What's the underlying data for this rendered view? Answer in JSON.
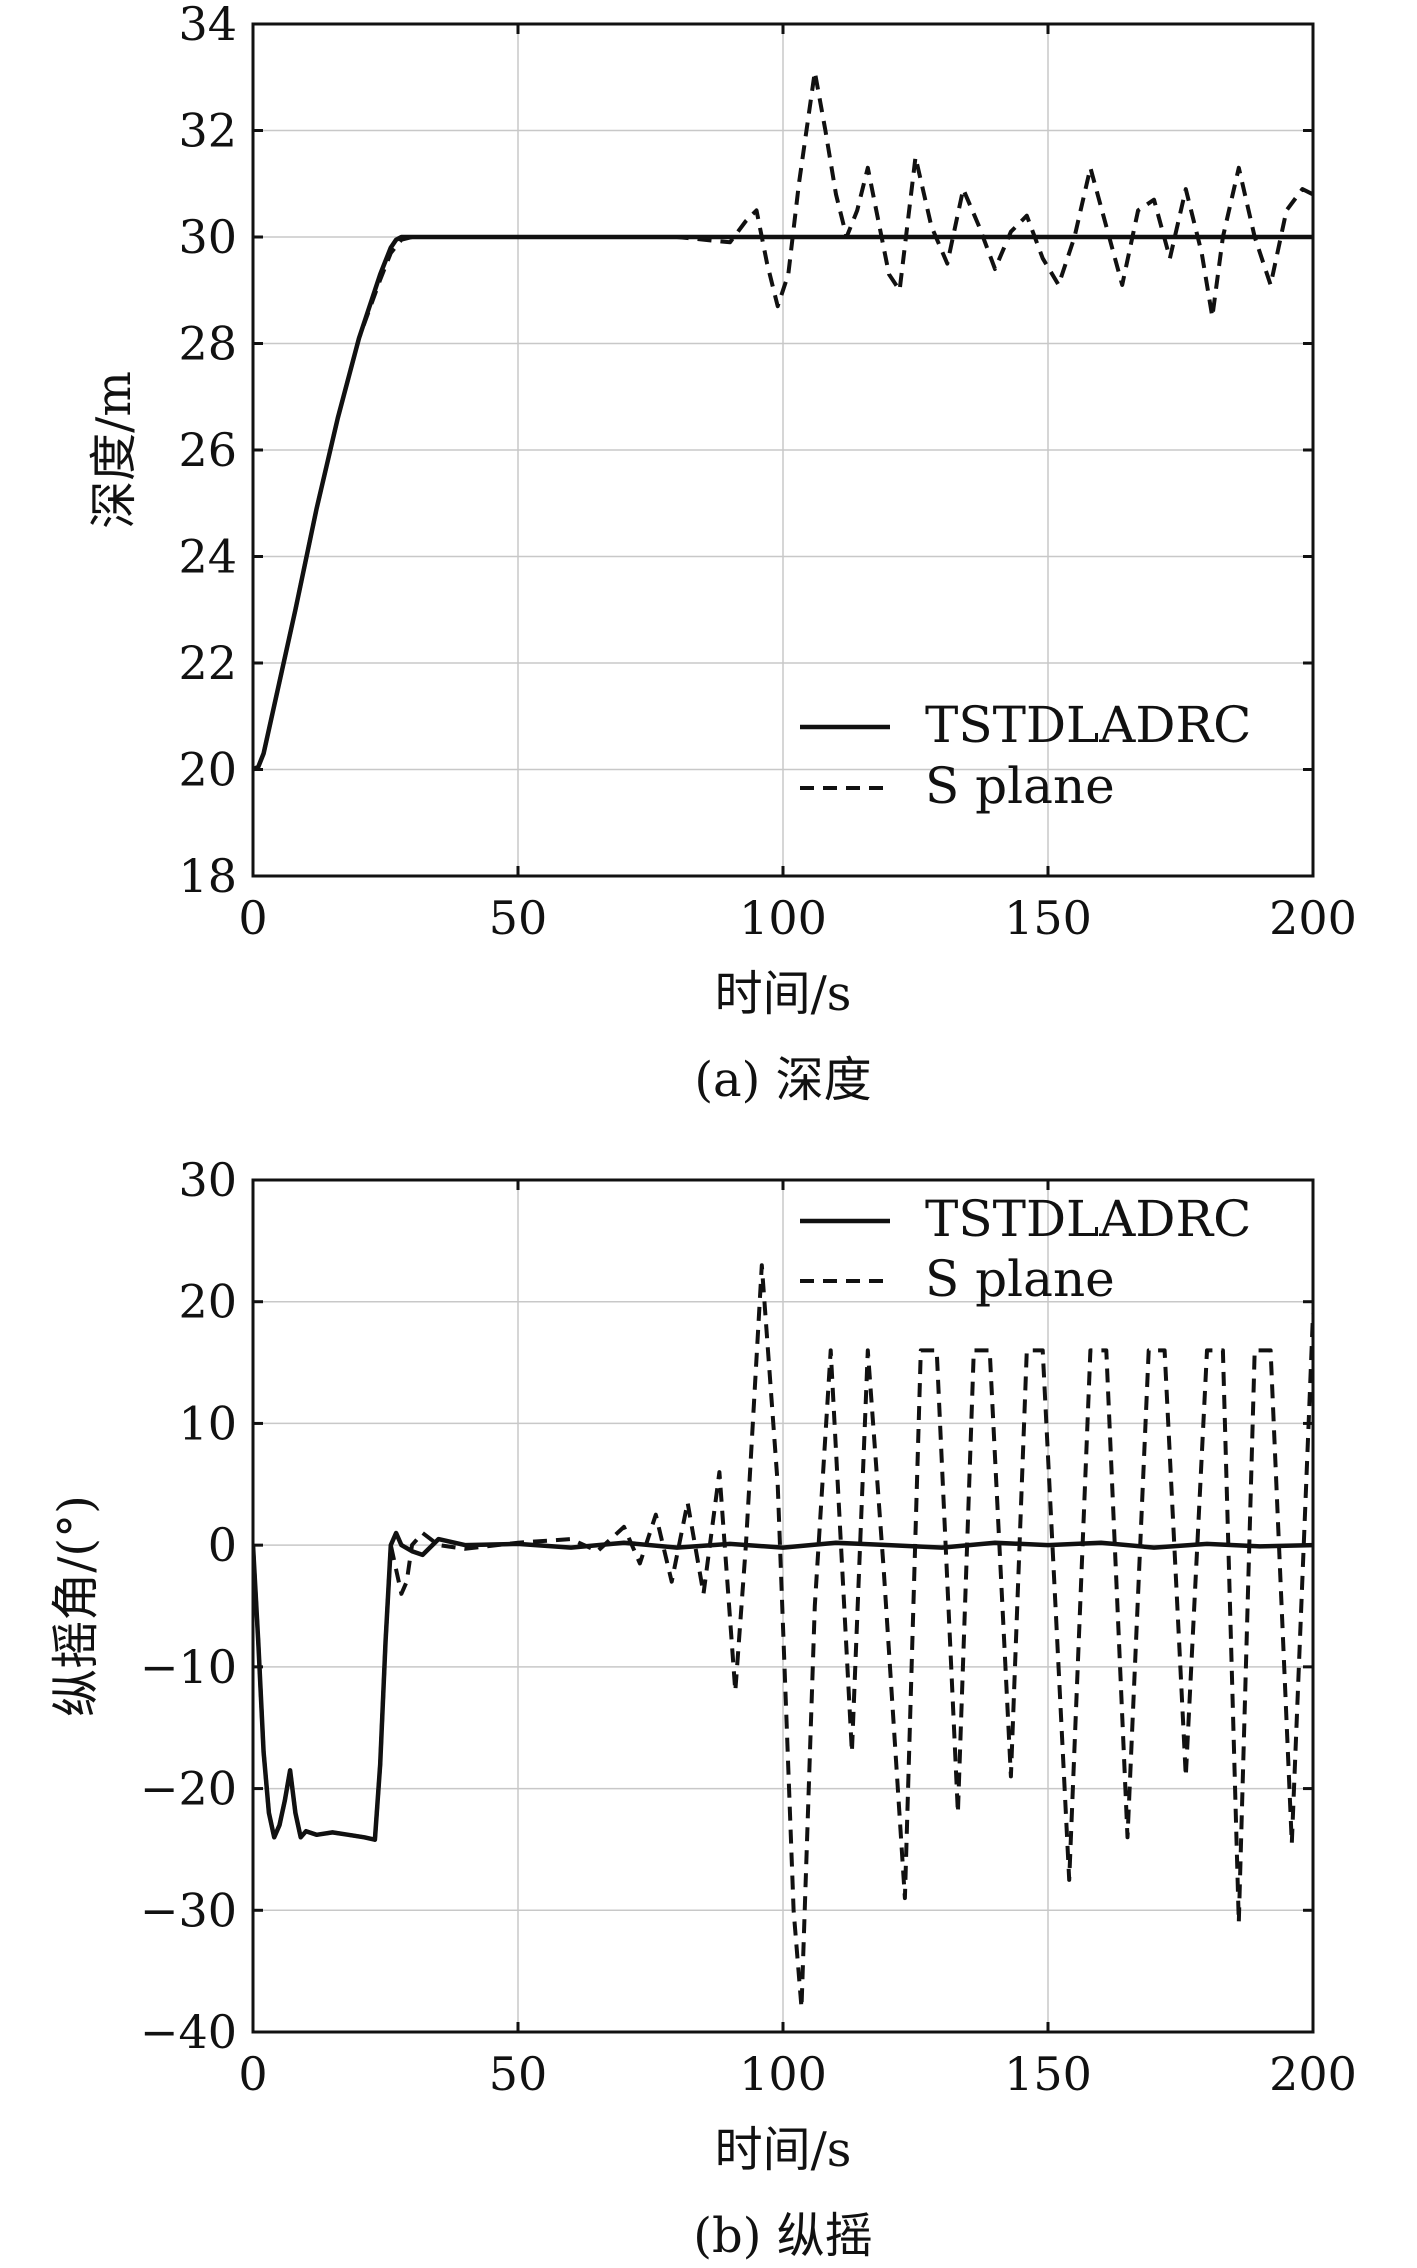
{
  "chart_data": [
    {
      "type": "line",
      "title": "",
      "caption": "(a) 深度",
      "xlabel": "时间/s",
      "ylabel": "深度/m",
      "xlim": [
        0,
        200
      ],
      "ylim": [
        18,
        34
      ],
      "xticks": [
        0,
        50,
        100,
        150,
        200
      ],
      "yticks": [
        18,
        20,
        22,
        24,
        26,
        28,
        30,
        32,
        34
      ],
      "grid": true,
      "legend_position": "bottom-right",
      "series": [
        {
          "name": "TSTDLADRC",
          "style": "solid",
          "x": [
            0,
            1,
            2,
            4,
            8,
            12,
            16,
            20,
            24,
            26,
            27,
            28,
            30,
            35,
            50,
            100,
            150,
            200
          ],
          "y": [
            20,
            20.05,
            20.3,
            21.2,
            23.0,
            24.9,
            26.6,
            28.1,
            29.3,
            29.8,
            29.95,
            30,
            30,
            30,
            30,
            30,
            30,
            30
          ]
        },
        {
          "name": "S plane",
          "style": "dashed",
          "x": [
            0,
            1,
            2,
            4,
            8,
            12,
            16,
            20,
            24,
            26,
            28,
            30,
            50,
            80,
            90,
            93,
            95,
            97,
            99,
            101,
            103,
            106,
            108,
            110,
            112,
            114,
            116,
            118,
            120,
            122,
            125,
            128,
            131,
            134,
            137,
            140,
            143,
            146,
            149,
            152,
            155,
            158,
            161,
            164,
            167,
            170,
            173,
            176,
            179,
            181,
            183,
            186,
            189,
            192,
            195,
            198,
            200
          ],
          "y": [
            20,
            20.05,
            20.3,
            21.2,
            23.0,
            24.9,
            26.6,
            28.1,
            29.2,
            29.7,
            29.95,
            30,
            30,
            30,
            29.9,
            30.3,
            30.5,
            29.5,
            28.7,
            29.3,
            31.0,
            33.1,
            32.0,
            30.8,
            30.0,
            30.5,
            31.3,
            30.3,
            29.3,
            29.0,
            31.5,
            30.2,
            29.5,
            30.9,
            30.2,
            29.4,
            30.1,
            30.4,
            29.6,
            29.1,
            30.0,
            31.3,
            30.2,
            29.1,
            30.5,
            30.7,
            29.6,
            30.9,
            29.7,
            28.5,
            30.0,
            31.3,
            30.0,
            29.1,
            30.5,
            30.9,
            30.8
          ]
        }
      ]
    },
    {
      "type": "line",
      "title": "",
      "caption": "(b) 纵摇",
      "xlabel": "时间/s",
      "ylabel": "纵摇角/(°)",
      "xlim": [
        0,
        200
      ],
      "ylim": [
        -40,
        30
      ],
      "xticks": [
        0,
        50,
        100,
        150,
        200
      ],
      "yticks": [
        30,
        20,
        10,
        0,
        -10,
        -20,
        -30,
        -40
      ],
      "ytick_labels": [
        "30",
        "20",
        "10",
        "0",
        "−10",
        "−20",
        "−30",
        "−40"
      ],
      "grid": true,
      "legend_position": "top-right",
      "series": [
        {
          "name": "TSTDLADRC",
          "style": "solid",
          "x": [
            0,
            1,
            2,
            3,
            4,
            5,
            6,
            7,
            8,
            9,
            10,
            12,
            15,
            18,
            21,
            23,
            24,
            25,
            26,
            27,
            28,
            30,
            32,
            35,
            40,
            50,
            60,
            70,
            80,
            90,
            100,
            110,
            120,
            130,
            140,
            150,
            160,
            170,
            180,
            190,
            200
          ],
          "y": [
            0,
            -8,
            -17,
            -22,
            -24,
            -23,
            -21,
            -18.5,
            -22,
            -24,
            -23.5,
            -23.8,
            -23.6,
            -23.8,
            -24,
            -24.2,
            -18,
            -8,
            0,
            1,
            0,
            -0.5,
            -0.8,
            0.5,
            0,
            0.1,
            -0.2,
            0.2,
            -0.2,
            0.1,
            -0.2,
            0.2,
            0,
            -0.2,
            0.2,
            0,
            0.2,
            -0.2,
            0.1,
            -0.1,
            0
          ]
        },
        {
          "name": "S plane",
          "style": "dashed",
          "x": [
            0,
            1,
            2,
            3,
            4,
            5,
            6,
            7,
            8,
            9,
            10,
            12,
            15,
            18,
            21,
            23,
            24,
            25,
            26,
            27,
            28,
            29,
            30,
            32,
            35,
            40,
            50,
            60,
            65,
            70,
            73,
            76,
            79,
            82,
            85,
            88,
            91,
            93,
            96,
            99,
            102,
            103.5,
            106,
            109,
            113,
            116,
            119,
            123,
            126,
            129,
            133,
            136,
            139,
            143,
            146,
            149,
            154,
            158,
            161,
            165,
            169,
            172,
            176,
            180,
            183,
            186,
            189,
            192,
            196,
            200
          ],
          "y": [
            0,
            -8,
            -17,
            -22,
            -24,
            -23,
            -21,
            -18.5,
            -22,
            -24,
            -23.5,
            -23.8,
            -23.6,
            -23.8,
            -24,
            -24.2,
            -18,
            -8,
            0,
            -2,
            -4,
            -3,
            0,
            1,
            0,
            -0.3,
            0.2,
            0.5,
            -0.5,
            1.5,
            -1.5,
            2.5,
            -3,
            3.5,
            -4,
            6,
            -12,
            0,
            23,
            5,
            -30,
            -38,
            -5,
            16,
            -17,
            16,
            -2,
            -29,
            16,
            16,
            -22,
            16,
            16,
            -19,
            16,
            16,
            -27.5,
            16,
            16,
            -24,
            16,
            16,
            -19,
            16,
            16,
            -31,
            16,
            16,
            -24.5,
            19
          ]
        }
      ]
    }
  ]
}
